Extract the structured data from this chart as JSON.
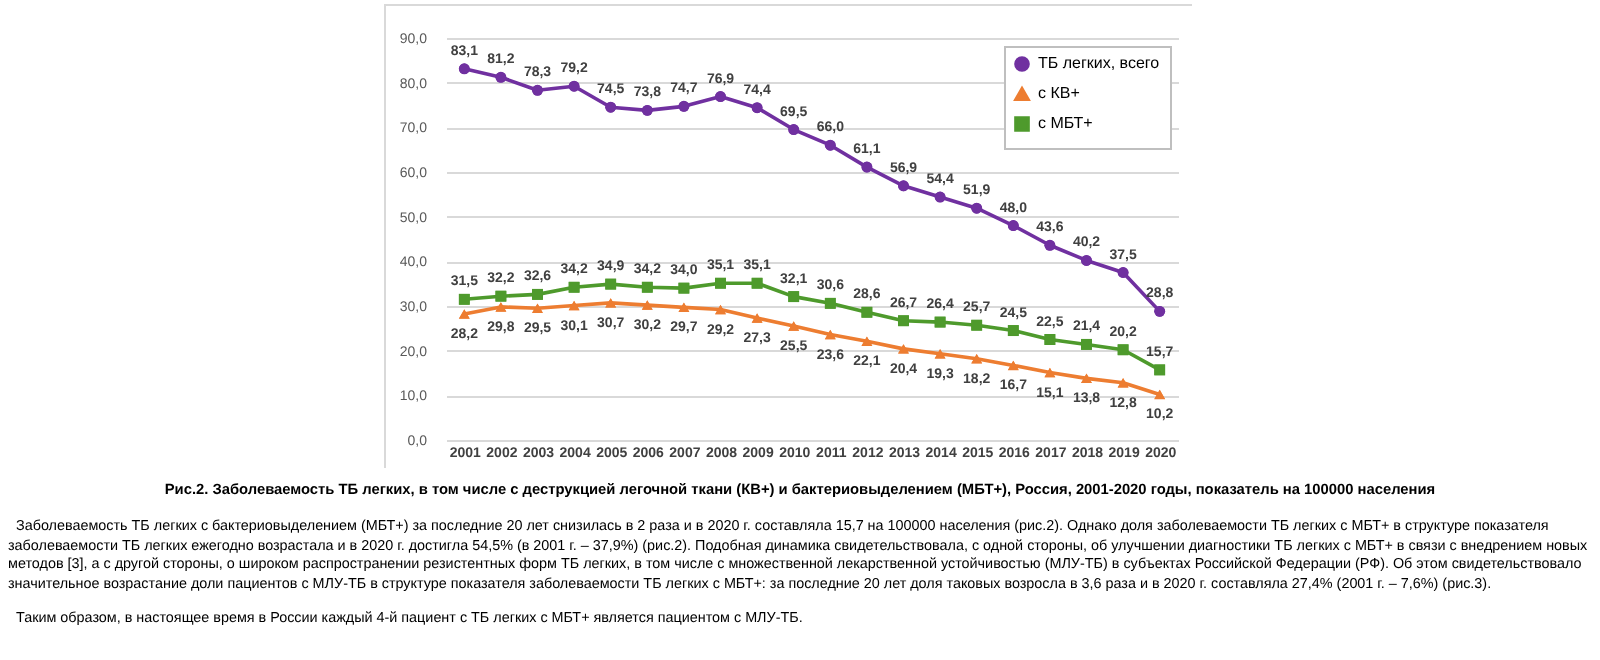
{
  "chart_data": {
    "type": "line",
    "title": "Рис.2. Заболеваемость ТБ легких, в том числе с деструкцией легочной ткани (КВ+) и бактериовыделением (МБТ+), Россия, 2001-2020 годы, показатель на 100000 населения",
    "categories": [
      "2001",
      "2002",
      "2003",
      "2004",
      "2005",
      "2006",
      "2007",
      "2008",
      "2009",
      "2010",
      "2011",
      "2012",
      "2013",
      "2014",
      "2015",
      "2016",
      "2017",
      "2018",
      "2019",
      "2020"
    ],
    "series": [
      {
        "name": "ТБ легких, всего",
        "color": "#7030a0",
        "marker": "circle",
        "values": [
          83.1,
          81.2,
          78.3,
          79.2,
          74.5,
          73.8,
          74.7,
          76.9,
          74.4,
          69.5,
          66.0,
          61.1,
          56.9,
          54.4,
          51.9,
          48.0,
          43.6,
          40.2,
          37.5,
          28.8
        ],
        "value_labels": [
          "83,1",
          "81,2",
          "78,3",
          "79,2",
          "74,5",
          "73,8",
          "74,7",
          "76,9",
          "74,4",
          "69,5",
          "66,0",
          "61,1",
          "56,9",
          "54,4",
          "51,9",
          "48,0",
          "43,6",
          "40,2",
          "37,5",
          "28,8"
        ]
      },
      {
        "name": "с КВ+",
        "color": "#ed7d31",
        "marker": "triangle",
        "values": [
          28.2,
          29.8,
          29.5,
          30.1,
          30.7,
          30.2,
          29.7,
          29.2,
          27.3,
          25.5,
          23.6,
          22.1,
          20.4,
          19.3,
          18.2,
          16.7,
          15.1,
          13.8,
          12.8,
          10.2
        ],
        "value_labels": [
          "28,2",
          "29,8",
          "29,5",
          "30,1",
          "30,7",
          "30,2",
          "29,7",
          "29,2",
          "27,3",
          "25,5",
          "23,6",
          "22,1",
          "20,4",
          "19,3",
          "18,2",
          "16,7",
          "15,1",
          "13,8",
          "12,8",
          "10,2"
        ]
      },
      {
        "name": "с МБТ+",
        "color": "#4e9a2c",
        "marker": "square",
        "values": [
          31.5,
          32.2,
          32.6,
          34.2,
          34.9,
          34.2,
          34.0,
          35.1,
          35.1,
          32.1,
          30.6,
          28.6,
          26.7,
          26.4,
          25.7,
          24.5,
          22.5,
          21.4,
          20.2,
          15.7
        ],
        "value_labels": [
          "31,5",
          "32,2",
          "32,6",
          "34,2",
          "34,9",
          "34,2",
          "34,0",
          "35,1",
          "35,1",
          "32,1",
          "30,6",
          "28,6",
          "26,7",
          "26,4",
          "25,7",
          "24,5",
          "22,5",
          "21,4",
          "20,2",
          "15,7"
        ]
      }
    ],
    "ylim": [
      0,
      90
    ],
    "yticks": [
      {
        "value": 0,
        "label": "0,0"
      },
      {
        "value": 10,
        "label": "10,0"
      },
      {
        "value": 20,
        "label": "20,0"
      },
      {
        "value": 30,
        "label": "30,0"
      },
      {
        "value": 40,
        "label": "40,0"
      },
      {
        "value": 50,
        "label": "50,0"
      },
      {
        "value": 60,
        "label": "60,0"
      },
      {
        "value": 70,
        "label": "70,0"
      },
      {
        "value": 80,
        "label": "80,0"
      },
      {
        "value": 90,
        "label": "90,0"
      }
    ],
    "grid": "y",
    "legend": "top right",
    "line_style": "solid",
    "annotations": [
      "Заболеваемость ТБ легких с бактериовыделением (МБТ+) за последние 20 лет снизилась в 2 раза и в 2020 г. составляла 15,7 на 100000 населения (рис.2). Однако доля заболеваемости ТБ легких с МБТ+ в структуре показателя заболеваемости ТБ легких ежегодно возрастала и в 2020 г. достигла 54,5% (в 2001 г. – 37,9%) (рис.2). Подобная динамика свидетельствовала, с одной стороны, об улучшении диагностики ТБ легких с МБТ+ в связи с внедрением новых методов [3], а с другой стороны, о широком распространении резистентных форм ТБ легких, в том числе с множественной лекарственной устойчивостью (МЛУ-ТБ) в субъектах Российской Федерации (РФ). Об этом свидетельствовало значительное возрастание доли пациентов с МЛУ-ТБ в структуре показателя заболеваемости ТБ легких с МБТ+: за последние 20 лет доля таковых возросла в 3,6 раза и в 2020 г. составляла 27,4% (2001 г. – 7,6%) (рис.3).",
      "Таким образом, в настоящее время в России каждый 4-й пациент с ТБ легких с МБТ+ является пациентом с МЛУ-ТБ."
    ]
  }
}
